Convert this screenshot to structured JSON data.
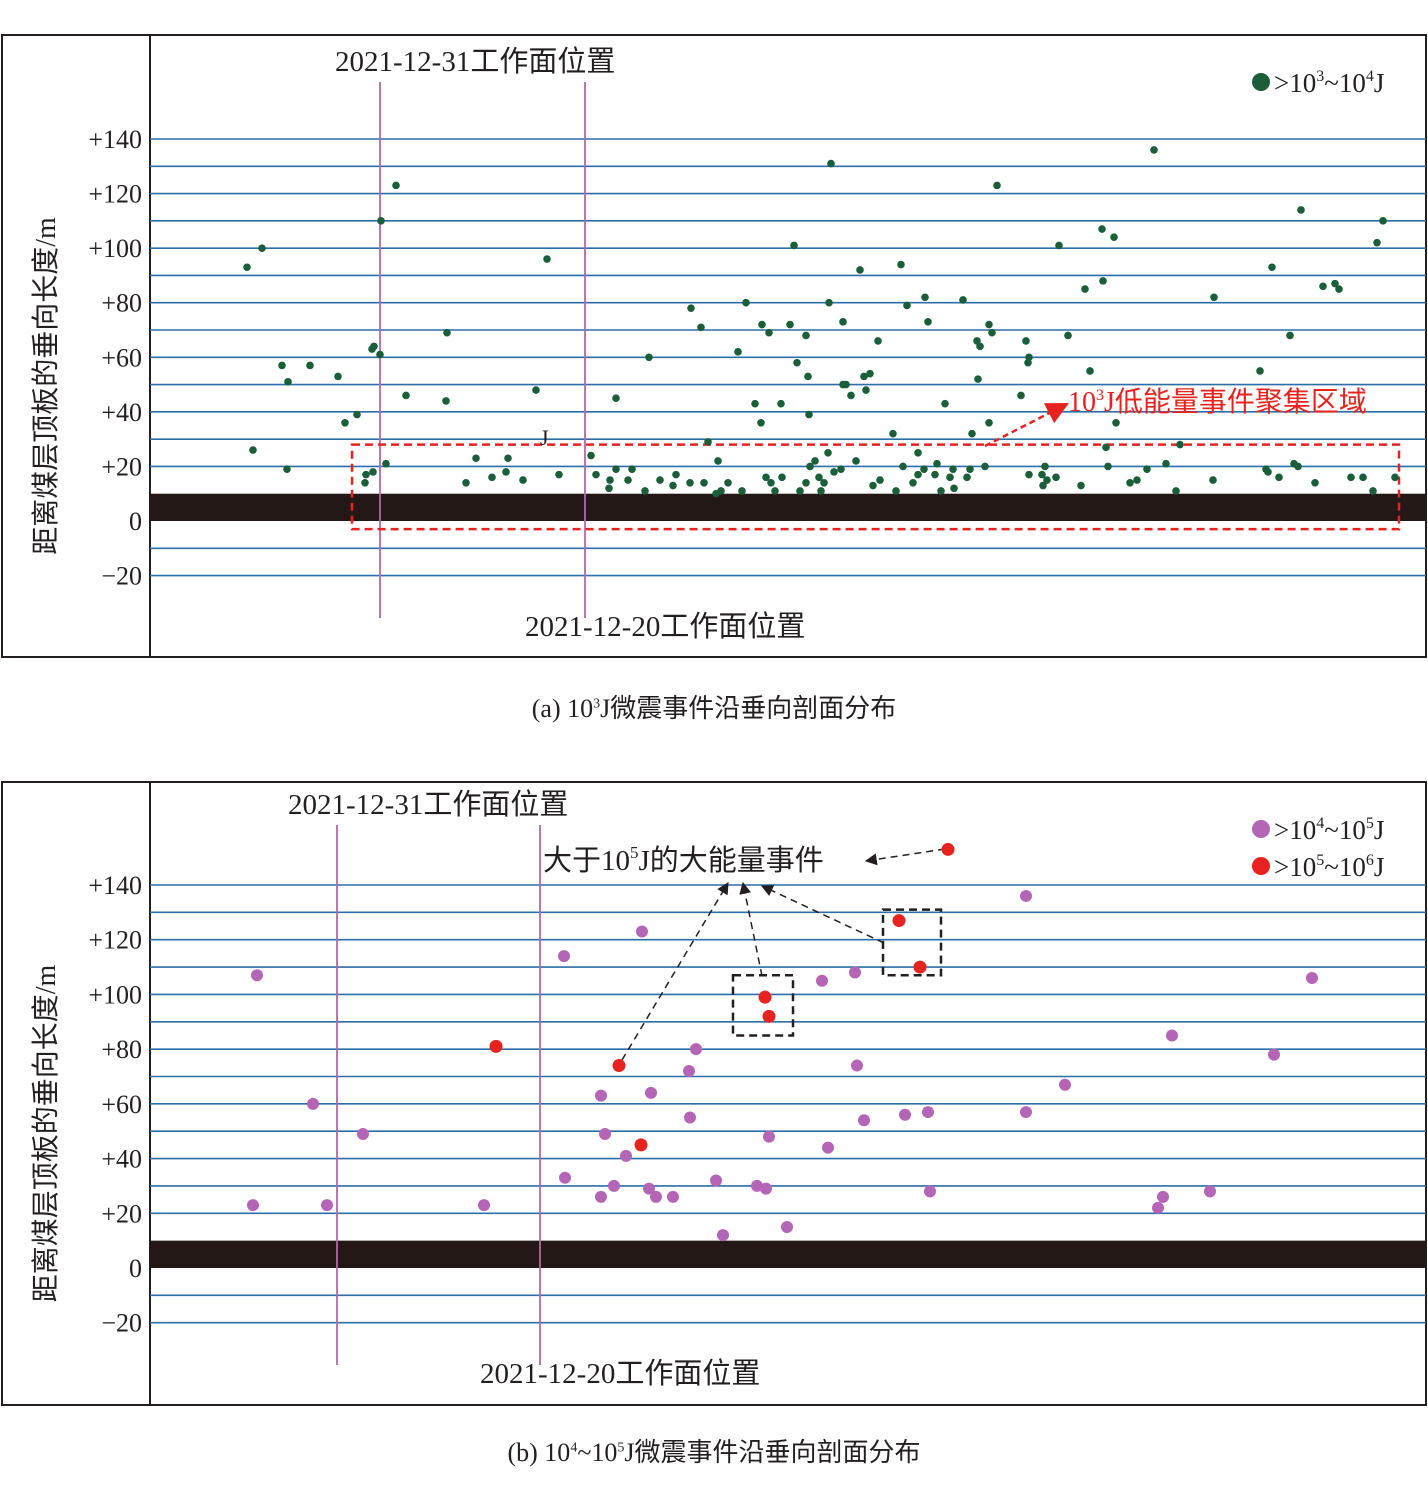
{
  "colors": {
    "grid": "#2b6ea8",
    "frame": "#231f20",
    "coal_seam": "#231815",
    "face_line": "#b06aa8",
    "event_1e3": "#1a5e3a",
    "event_1e4": "#b565b5",
    "event_1e5": "#e8231f",
    "cluster_box": "#e8231f",
    "annotation_box": "#231f20"
  },
  "chart_data": [
    {
      "type": "scatter",
      "panel": "a",
      "caption": {
        "prefix": "(a) 10",
        "sup": "3",
        "suffix": "J微震事件沿垂向剖面分布"
      },
      "ylabel": "距离煤层顶板的垂向长度/m",
      "yticks": [
        140,
        120,
        100,
        80,
        60,
        40,
        20,
        0,
        -20
      ],
      "ytick_labels": [
        "+140",
        "+120",
        "+100",
        "+80",
        "+60",
        "+40",
        "+20",
        "0",
        "−20"
      ],
      "grid_lines": [
        140,
        130,
        120,
        110,
        100,
        90,
        80,
        70,
        60,
        50,
        40,
        30,
        20,
        -10,
        -20
      ],
      "coal_seam_range": [
        0,
        10
      ],
      "face_lines": [
        {
          "label": "2021-12-31工作面位置",
          "x": 380
        },
        {
          "label": "2021-12-20工作面位置",
          "x": 585
        }
      ],
      "legend": [
        {
          "label": ">10³~10⁴J",
          "base": ">10",
          "exp1": "3",
          "mid": "~10",
          "exp2": "4",
          "unit": "J",
          "color": "#1a5e3a"
        }
      ],
      "stray_label": "J",
      "cluster": {
        "label": "10³J低能量事件聚集区域",
        "base": "10",
        "exp": "3",
        "rest": "J低能量事件聚集区域",
        "x_range": [
          352,
          1399
        ],
        "y_range": [
          -3,
          28
        ]
      },
      "series": [
        {
          "name": ">10³~10⁴J",
          "points": [
            [
              247,
              93
            ],
            [
              262,
              100
            ],
            [
              253,
              26
            ],
            [
              282,
              57
            ],
            [
              288,
              51
            ],
            [
              287,
              19
            ],
            [
              310,
              57
            ],
            [
              338,
              53
            ],
            [
              345,
              36
            ],
            [
              357,
              39
            ],
            [
              365,
              14
            ],
            [
              366,
              17
            ],
            [
              373,
              18
            ],
            [
              372,
              63
            ],
            [
              374,
              64
            ],
            [
              380,
              61
            ],
            [
              381,
              110
            ],
            [
              386,
              21
            ],
            [
              396,
              123
            ],
            [
              406,
              46
            ],
            [
              447,
              69
            ],
            [
              446,
              44
            ],
            [
              466,
              14
            ],
            [
              476,
              23
            ],
            [
              492,
              16
            ],
            [
              506,
              18
            ],
            [
              508,
              23
            ],
            [
              523,
              15
            ],
            [
              536,
              48
            ],
            [
              547,
              96
            ],
            [
              559,
              17
            ],
            [
              591,
              24
            ],
            [
              596,
              17
            ],
            [
              609,
              12
            ],
            [
              610,
              15
            ],
            [
              616,
              45
            ],
            [
              616,
              19
            ],
            [
              628,
              15
            ],
            [
              632,
              19
            ],
            [
              645,
              11
            ],
            [
              649,
              60
            ],
            [
              660,
              15
            ],
            [
              673,
              13
            ],
            [
              676,
              17
            ],
            [
              690,
              14
            ],
            [
              691,
              78
            ],
            [
              701,
              71
            ],
            [
              704,
              14
            ],
            [
              708,
              29
            ],
            [
              716,
              10
            ],
            [
              718,
              22
            ],
            [
              721,
              11
            ],
            [
              728,
              14
            ],
            [
              738,
              62
            ],
            [
              742,
              11
            ],
            [
              746,
              80
            ],
            [
              755,
              43
            ],
            [
              761,
              36
            ],
            [
              766,
              16
            ],
            [
              771,
              14
            ],
            [
              775,
              11
            ],
            [
              762,
              72
            ],
            [
              769,
              69
            ],
            [
              781,
              43
            ],
            [
              782,
              16
            ],
            [
              790,
              72
            ],
            [
              794,
              101
            ],
            [
              797,
              58
            ],
            [
              800,
              11
            ],
            [
              806,
              14
            ],
            [
              808,
              53
            ],
            [
              809,
              39
            ],
            [
              806,
              68
            ],
            [
              810,
              20
            ],
            [
              815,
              22
            ],
            [
              819,
              16
            ],
            [
              821,
              11
            ],
            [
              824,
              14
            ],
            [
              828,
              25
            ],
            [
              829,
              80
            ],
            [
              831,
              131
            ],
            [
              834,
              18
            ],
            [
              841,
              19
            ],
            [
              843,
              73
            ],
            [
              843,
              50
            ],
            [
              846,
              50
            ],
            [
              851,
              46
            ],
            [
              856,
              22
            ],
            [
              860,
              92
            ],
            [
              864,
              53
            ],
            [
              866,
              48
            ],
            [
              870,
              54
            ],
            [
              873,
              13
            ],
            [
              878,
              66
            ],
            [
              880,
              15
            ],
            [
              893,
              32
            ],
            [
              896,
              11
            ],
            [
              901,
              94
            ],
            [
              903,
              20
            ],
            [
              907,
              79
            ],
            [
              913,
              14
            ],
            [
              918,
              17
            ],
            [
              918,
              25
            ],
            [
              924,
              19
            ],
            [
              925,
              82
            ],
            [
              928,
              73
            ],
            [
              935,
              17
            ],
            [
              937,
              21
            ],
            [
              941,
              11
            ],
            [
              945,
              43
            ],
            [
              950,
              16
            ],
            [
              953,
              19
            ],
            [
              954,
              12
            ],
            [
              963,
              81
            ],
            [
              967,
              16
            ],
            [
              970,
              19
            ],
            [
              972,
              32
            ],
            [
              977,
              66
            ],
            [
              980,
              64
            ],
            [
              978,
              52
            ],
            [
              985,
              20
            ],
            [
              989,
              72
            ],
            [
              989,
              36
            ],
            [
              992,
              69
            ],
            [
              997,
              123
            ],
            [
              1021,
              46
            ],
            [
              1026,
              66
            ],
            [
              1029,
              60
            ],
            [
              1028,
              58
            ],
            [
              1029,
              17
            ],
            [
              1042,
              17
            ],
            [
              1043,
              13
            ],
            [
              1045,
              20
            ],
            [
              1047,
              15
            ],
            [
              1056,
              16
            ],
            [
              1059,
              101
            ],
            [
              1068,
              68
            ],
            [
              1081,
              13
            ],
            [
              1085,
              85
            ],
            [
              1090,
              55
            ],
            [
              1102,
              107
            ],
            [
              1103,
              88
            ],
            [
              1106,
              27
            ],
            [
              1108,
              20
            ],
            [
              1114,
              104
            ],
            [
              1116,
              36
            ],
            [
              1130,
              14
            ],
            [
              1137,
              15
            ],
            [
              1147,
              19
            ],
            [
              1154,
              136
            ],
            [
              1166,
              21
            ],
            [
              1176,
              11
            ],
            [
              1180,
              28
            ],
            [
              1213,
              15
            ],
            [
              1214,
              82
            ],
            [
              1260,
              55
            ],
            [
              1266,
              19
            ],
            [
              1268,
              18
            ],
            [
              1272,
              93
            ],
            [
              1279,
              16
            ],
            [
              1290,
              68
            ],
            [
              1294,
              21
            ],
            [
              1298,
              20
            ],
            [
              1301,
              114
            ],
            [
              1315,
              14
            ],
            [
              1323,
              86
            ],
            [
              1335,
              87
            ],
            [
              1339,
              85
            ],
            [
              1351,
              16
            ],
            [
              1363,
              16
            ],
            [
              1373,
              11
            ],
            [
              1377,
              102
            ],
            [
              1383,
              110
            ],
            [
              1395,
              16
            ]
          ]
        }
      ]
    },
    {
      "type": "scatter",
      "panel": "b",
      "caption": {
        "prefix": "(b) 10",
        "sup": "4",
        "mid": "~10",
        "sup2": "5",
        "suffix": "J微震事件沿垂向剖面分布"
      },
      "ylabel": "距离煤层顶板的垂向长度/m",
      "yticks": [
        140,
        120,
        100,
        80,
        60,
        40,
        20,
        0,
        -20
      ],
      "ytick_labels": [
        "+140",
        "+120",
        "+100",
        "+80",
        "+60",
        "+40",
        "+20",
        "0",
        "−20"
      ],
      "grid_lines": [
        140,
        130,
        120,
        110,
        100,
        90,
        80,
        70,
        60,
        50,
        40,
        30,
        20,
        -10,
        -20
      ],
      "coal_seam_range": [
        0,
        10
      ],
      "face_lines": [
        {
          "label": "2021-12-31工作面位置",
          "x": 337
        },
        {
          "label": "2021-12-20工作面位置",
          "x": 540
        }
      ],
      "legend": [
        {
          "label": ">10⁴~10⁵J",
          "base": ">10",
          "exp1": "4",
          "mid": "~10",
          "exp2": "5",
          "unit": "J",
          "color": "#b565b5"
        },
        {
          "label": ">10⁵~10⁶J",
          "base": ">10",
          "exp1": "5",
          "mid": "~10",
          "exp2": "6",
          "unit": "J",
          "color": "#e8231f"
        }
      ],
      "annotation": {
        "label": "大于10⁵J的大能量事件",
        "pre": "大于10",
        "exp": "5",
        "post": "J的大能量事件"
      },
      "annotation_boxes": [
        {
          "x_range": [
            733,
            793
          ],
          "y_range": [
            85,
            107
          ]
        },
        {
          "x_range": [
            883,
            941
          ],
          "y_range": [
            107,
            131
          ]
        }
      ],
      "series": [
        {
          "name": ">10⁴~10⁵J",
          "points": [
            [
              257,
              107
            ],
            [
              253,
              23
            ],
            [
              313,
              60
            ],
            [
              327,
              23
            ],
            [
              363,
              49
            ],
            [
              484,
              23
            ],
            [
              564,
              114
            ],
            [
              565,
              33
            ],
            [
              601,
              63
            ],
            [
              605,
              49
            ],
            [
              601,
              26
            ],
            [
              614,
              30
            ],
            [
              626,
              41
            ],
            [
              642,
              123
            ],
            [
              649,
              29
            ],
            [
              651,
              64
            ],
            [
              656,
              26
            ],
            [
              673,
              26
            ],
            [
              690,
              55
            ],
            [
              689,
              72
            ],
            [
              696,
              80
            ],
            [
              716,
              32
            ],
            [
              723,
              12
            ],
            [
              757,
              30
            ],
            [
              766,
              29
            ],
            [
              769,
              48
            ],
            [
              787,
              15
            ],
            [
              822,
              105
            ],
            [
              828,
              44
            ],
            [
              855,
              108
            ],
            [
              857,
              74
            ],
            [
              864,
              54
            ],
            [
              905,
              56
            ],
            [
              928,
              57
            ],
            [
              930,
              28
            ],
            [
              1026,
              57
            ],
            [
              1026,
              136
            ],
            [
              1065,
              67
            ],
            [
              1158,
              22
            ],
            [
              1163,
              26
            ],
            [
              1172,
              85
            ],
            [
              1210,
              28
            ],
            [
              1274,
              78
            ],
            [
              1312,
              106
            ]
          ]
        },
        {
          "name": ">10⁵~10⁶J",
          "points": [
            [
              496,
              81
            ],
            [
              619,
              74
            ],
            [
              641,
              45
            ],
            [
              765,
              99
            ],
            [
              769,
              92
            ],
            [
              899,
              127
            ],
            [
              920,
              110
            ],
            [
              948,
              153
            ]
          ]
        }
      ]
    }
  ]
}
